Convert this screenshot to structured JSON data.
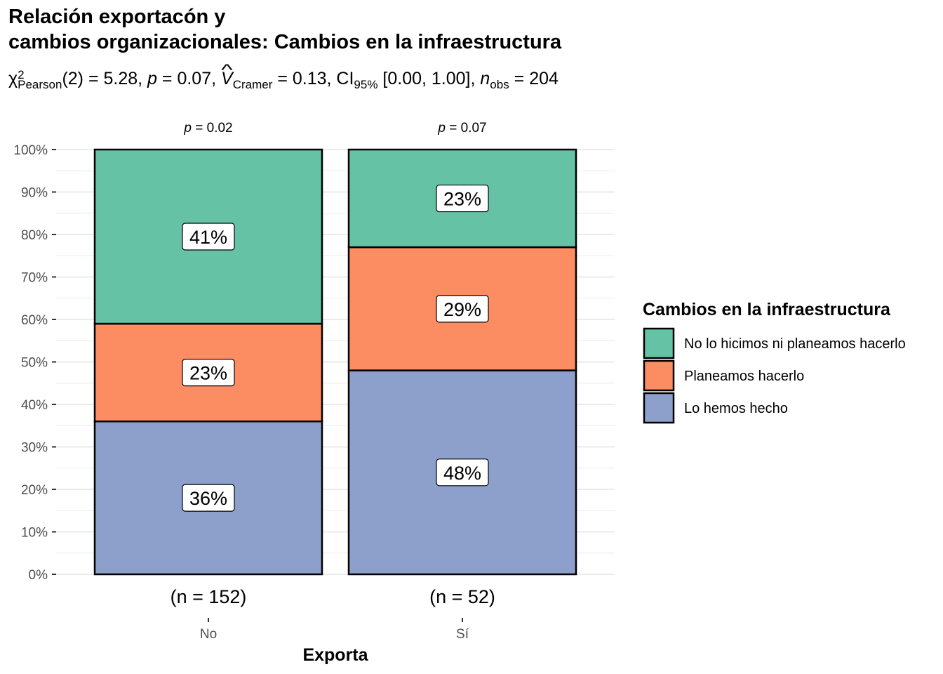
{
  "title_line1": "Relación exportacón y",
  "title_line2": "cambios organizacionales: Cambios en la infraestructura",
  "stats": {
    "chi_symbol": "χ",
    "chi_sup": "2",
    "chi_sub": "Pearson",
    "df": "(2) = 5.28, ",
    "p_label": "p",
    "p_value": " = 0.07, ",
    "v_label": "V",
    "v_sub": "Cramer",
    "v_value": " = 0.13, CI",
    "ci_sub": "95%",
    "ci_value": " [0.00, 1.00], ",
    "n_label": "n",
    "n_sub": "obs",
    "n_value": " = 204"
  },
  "colors": {
    "no_lo_hicimos": "#66C2A5",
    "planeamos": "#FC8D62",
    "lo_hemos_hecho": "#8DA0CB",
    "grid": "#EBEBEB",
    "axis_text": "#4D4D4D"
  },
  "chart_data": {
    "type": "bar",
    "stacked": true,
    "xlabel": "Exporta",
    "ylabel": "",
    "ylim": [
      0,
      100
    ],
    "yticks": [
      "0%",
      "10%",
      "20%",
      "30%",
      "40%",
      "50%",
      "60%",
      "70%",
      "80%",
      "90%",
      "100%"
    ],
    "categories": [
      "No",
      "Sí"
    ],
    "counts": [
      "(n = 152)",
      "(n = 52)"
    ],
    "pvalues": [
      "= 0.02",
      "= 0.07"
    ],
    "p_symbol": "p",
    "series": [
      {
        "name": "Lo hemos hecho",
        "values": [
          36,
          48
        ],
        "labels": [
          "36%",
          "48%"
        ]
      },
      {
        "name": "Planeamos hacerlo",
        "values": [
          23,
          29
        ],
        "labels": [
          "23%",
          "29%"
        ]
      },
      {
        "name": "No lo hicimos ni planeamos hacerlo",
        "values": [
          41,
          23
        ],
        "labels": [
          "41%",
          "23%"
        ]
      }
    ],
    "legend": {
      "title": "Cambios en la infraestructura",
      "position": "right",
      "entries": [
        "No lo hicimos ni planeamos hacerlo",
        "Planeamos hacerlo",
        "Lo hemos hecho"
      ]
    },
    "grid": true
  }
}
